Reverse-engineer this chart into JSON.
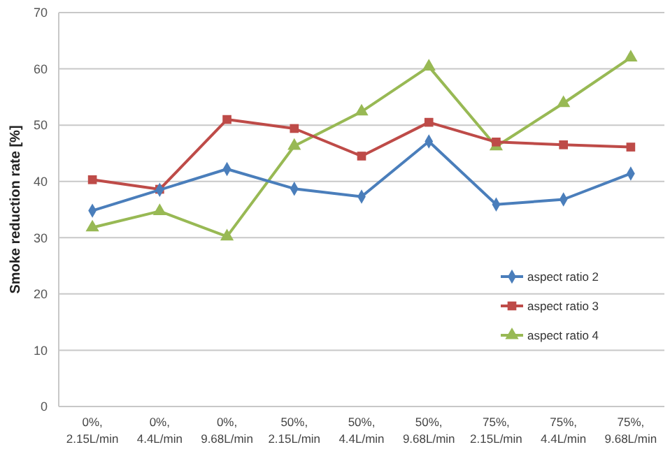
{
  "chart_data": {
    "type": "line",
    "ylabel": "Smoke reduction rate [%]",
    "categories": [
      "0%, 2.15L/min",
      "0%, 4.4L/min",
      "0%, 9.68L/min",
      "50%, 2.15L/min",
      "50%, 4.4L/min",
      "50%, 9.68L/min",
      "75%, 2.15L/min",
      "75%, 4.4L/min",
      "75%, 9.68L/min"
    ],
    "series": [
      {
        "name": "aspect ratio 2",
        "color": "#4a7ebb",
        "marker": "diamond",
        "values": [
          34.8,
          38.5,
          42.2,
          38.7,
          37.3,
          47.1,
          35.9,
          36.8,
          41.4
        ]
      },
      {
        "name": "aspect ratio 3",
        "color": "#be4b48",
        "marker": "square",
        "values": [
          40.3,
          38.6,
          51.0,
          49.4,
          44.5,
          50.5,
          47.0,
          46.5,
          46.1
        ]
      },
      {
        "name": "aspect ratio 4",
        "color": "#98b954",
        "marker": "triangle",
        "values": [
          31.8,
          34.7,
          30.2,
          46.3,
          52.4,
          60.4,
          46.2,
          53.9,
          62.0
        ]
      }
    ],
    "ylim": [
      0,
      70
    ],
    "yticks": [
      0,
      10,
      20,
      30,
      40,
      50,
      60,
      70
    ],
    "grid": "y",
    "legend": "right",
    "line_style": "solid"
  }
}
